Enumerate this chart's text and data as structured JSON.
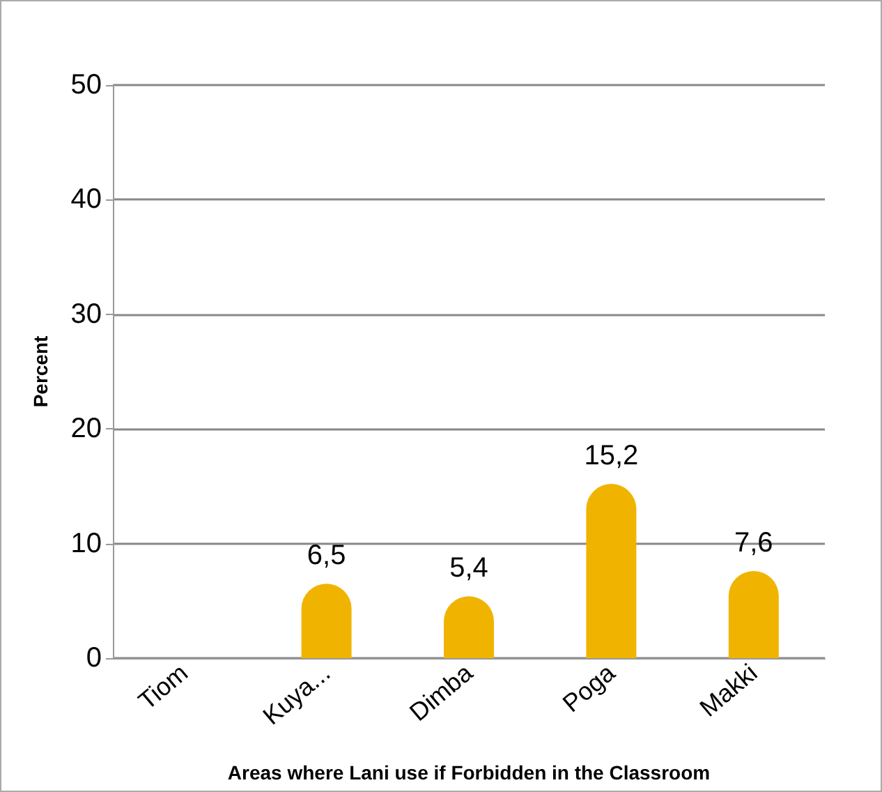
{
  "chart_data": {
    "type": "bar",
    "xlabel": "Areas where Lani use if Forbidden in the Classroom",
    "ylabel": "Percent",
    "categories": [
      "Tiom",
      "Kuya...",
      "Dimba",
      "Poga",
      "Makki"
    ],
    "values": [
      null,
      6.5,
      5.4,
      15.2,
      7.6
    ],
    "value_labels": [
      null,
      "6,5",
      "5,4",
      "15,2",
      "7,6"
    ],
    "color": "#f0b400",
    "ylim": [
      0,
      50
    ],
    "yticks": [
      0,
      10,
      20,
      30,
      40,
      50
    ],
    "grid": "y"
  }
}
